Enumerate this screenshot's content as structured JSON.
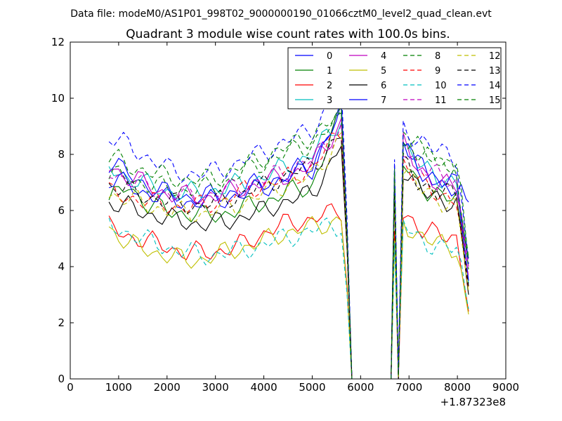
{
  "figure": {
    "data_file_line": "Data file: modeM0/AS1P01_998T02_9000000190_01066cztM0_level2_quad_clean.evt",
    "x_offset_label": "+1.87323e8"
  },
  "chart_data": {
    "type": "line",
    "title": "Quadrant 3 module wise count rates with 100.0s bins.",
    "xlabel": "",
    "ylabel": "",
    "xlim": [
      0,
      9000
    ],
    "ylim": [
      0,
      12
    ],
    "xticks": [
      "0",
      "1000",
      "2000",
      "3000",
      "4000",
      "5000",
      "6000",
      "7000",
      "8000",
      "9000"
    ],
    "yticks": [
      "0",
      "2",
      "4",
      "6",
      "8",
      "10",
      "12"
    ],
    "grid": false,
    "legend_position": "top-right",
    "legend_columns": 4,
    "gap": [
      5820,
      6630
    ],
    "series": [
      {
        "name": "0",
        "color": "#0000ff",
        "style": "solid",
        "values": [
          7.7,
          7.3,
          6.9,
          6.6,
          6.5,
          6.5,
          6.6,
          6.8,
          7.0,
          7.2,
          7.7,
          9.6,
          8.7,
          7.6,
          7.0,
          6.8,
          6.3
        ]
      },
      {
        "name": "1",
        "color": "#008000",
        "style": "solid",
        "values": [
          6.3,
          6.9,
          6.2,
          6.0,
          5.9,
          5.8,
          5.9,
          6.1,
          6.3,
          6.6,
          6.9,
          9.5,
          7.9,
          6.9,
          6.6,
          6.3,
          4.3
        ]
      },
      {
        "name": "2",
        "color": "#ff0000",
        "style": "solid",
        "values": [
          5.4,
          5.1,
          4.9,
          4.7,
          4.5,
          4.5,
          4.6,
          4.8,
          5.2,
          5.5,
          5.7,
          6.0,
          6.2,
          5.4,
          5.1,
          5.0,
          2.4
        ]
      },
      {
        "name": "3",
        "color": "#00bfbf",
        "style": "solid",
        "values": [
          7.5,
          7.2,
          6.9,
          6.7,
          6.6,
          6.7,
          6.8,
          7.0,
          7.2,
          7.5,
          8.0,
          9.3,
          8.5,
          7.6,
          7.2,
          7.0,
          3.4
        ]
      },
      {
        "name": "4",
        "color": "#bf00bf",
        "style": "solid",
        "values": [
          7.6,
          7.2,
          6.9,
          6.6,
          6.5,
          6.5,
          6.6,
          6.8,
          7.0,
          7.2,
          7.6,
          9.2,
          8.6,
          7.5,
          7.0,
          6.8,
          4.0
        ]
      },
      {
        "name": "5",
        "color": "#bfbf00",
        "style": "solid",
        "values": [
          5.4,
          4.8,
          4.6,
          4.4,
          4.2,
          4.3,
          4.5,
          4.7,
          4.9,
          5.2,
          5.4,
          5.7,
          5.8,
          5.1,
          4.8,
          4.6,
          2.3
        ]
      },
      {
        "name": "6",
        "color": "#000000",
        "style": "solid",
        "values": [
          6.3,
          6.1,
          5.9,
          5.7,
          5.6,
          5.5,
          5.6,
          5.8,
          6.0,
          6.3,
          6.6,
          8.4,
          7.7,
          6.7,
          6.5,
          6.2,
          3.0
        ]
      },
      {
        "name": "7",
        "color": "#0000ff",
        "style": "solid",
        "values": [
          7.1,
          6.9,
          6.6,
          6.4,
          6.3,
          6.3,
          6.4,
          6.6,
          6.8,
          7.1,
          7.5,
          9.6,
          8.6,
          7.5,
          7.1,
          6.9,
          3.5
        ]
      },
      {
        "name": "8",
        "color": "#008000",
        "style": "dashed",
        "values": [
          7.2,
          7.2,
          6.9,
          6.8,
          6.7,
          6.8,
          7.0,
          7.4,
          7.7,
          8.0,
          8.4,
          9.3,
          8.9,
          8.1,
          7.7,
          7.5,
          3.9
        ]
      },
      {
        "name": "9",
        "color": "#ff0000",
        "style": "dashed",
        "values": [
          6.6,
          6.5,
          6.3,
          6.2,
          6.1,
          6.2,
          6.4,
          6.7,
          6.9,
          7.1,
          7.5,
          8.9,
          7.9,
          7.0,
          6.6,
          6.4,
          3.2
        ]
      },
      {
        "name": "10",
        "color": "#00bfbf",
        "style": "dashed",
        "values": [
          5.5,
          5.2,
          4.9,
          4.7,
          4.5,
          4.4,
          4.5,
          4.6,
          4.8,
          5.0,
          5.3,
          5.5,
          5.7,
          5.0,
          4.7,
          4.6,
          2.5
        ]
      },
      {
        "name": "11",
        "color": "#bf00bf",
        "style": "dashed",
        "values": [
          7.4,
          7.1,
          6.8,
          6.6,
          6.5,
          6.5,
          6.7,
          6.9,
          7.1,
          7.4,
          7.8,
          9.0,
          8.5,
          7.6,
          7.2,
          7.0,
          3.6
        ]
      },
      {
        "name": "12",
        "color": "#bfbf00",
        "style": "dashed",
        "values": [
          6.6,
          6.4,
          6.2,
          6.0,
          5.9,
          5.9,
          6.1,
          6.3,
          6.6,
          6.9,
          7.2,
          8.7,
          7.7,
          6.8,
          6.4,
          6.2,
          3.1
        ]
      },
      {
        "name": "13",
        "color": "#000000",
        "style": "dashed",
        "values": [
          6.9,
          6.7,
          6.5,
          6.3,
          6.2,
          6.2,
          6.4,
          6.6,
          6.9,
          7.2,
          7.6,
          8.7,
          7.9,
          7.0,
          6.7,
          6.5,
          3.3
        ]
      },
      {
        "name": "14",
        "color": "#0000ff",
        "style": "dashed",
        "values": [
          8.6,
          8.3,
          7.9,
          7.5,
          7.3,
          7.3,
          7.5,
          7.8,
          8.1,
          8.4,
          8.9,
          10.4,
          9.2,
          8.5,
          8.1,
          7.9,
          4.1
        ]
      },
      {
        "name": "15",
        "color": "#008000",
        "style": "dashed",
        "values": [
          7.9,
          7.6,
          7.4,
          7.2,
          7.1,
          7.1,
          7.3,
          7.6,
          7.9,
          8.2,
          8.7,
          9.4,
          8.7,
          8.2,
          7.8,
          7.6,
          4.3
        ]
      }
    ]
  }
}
